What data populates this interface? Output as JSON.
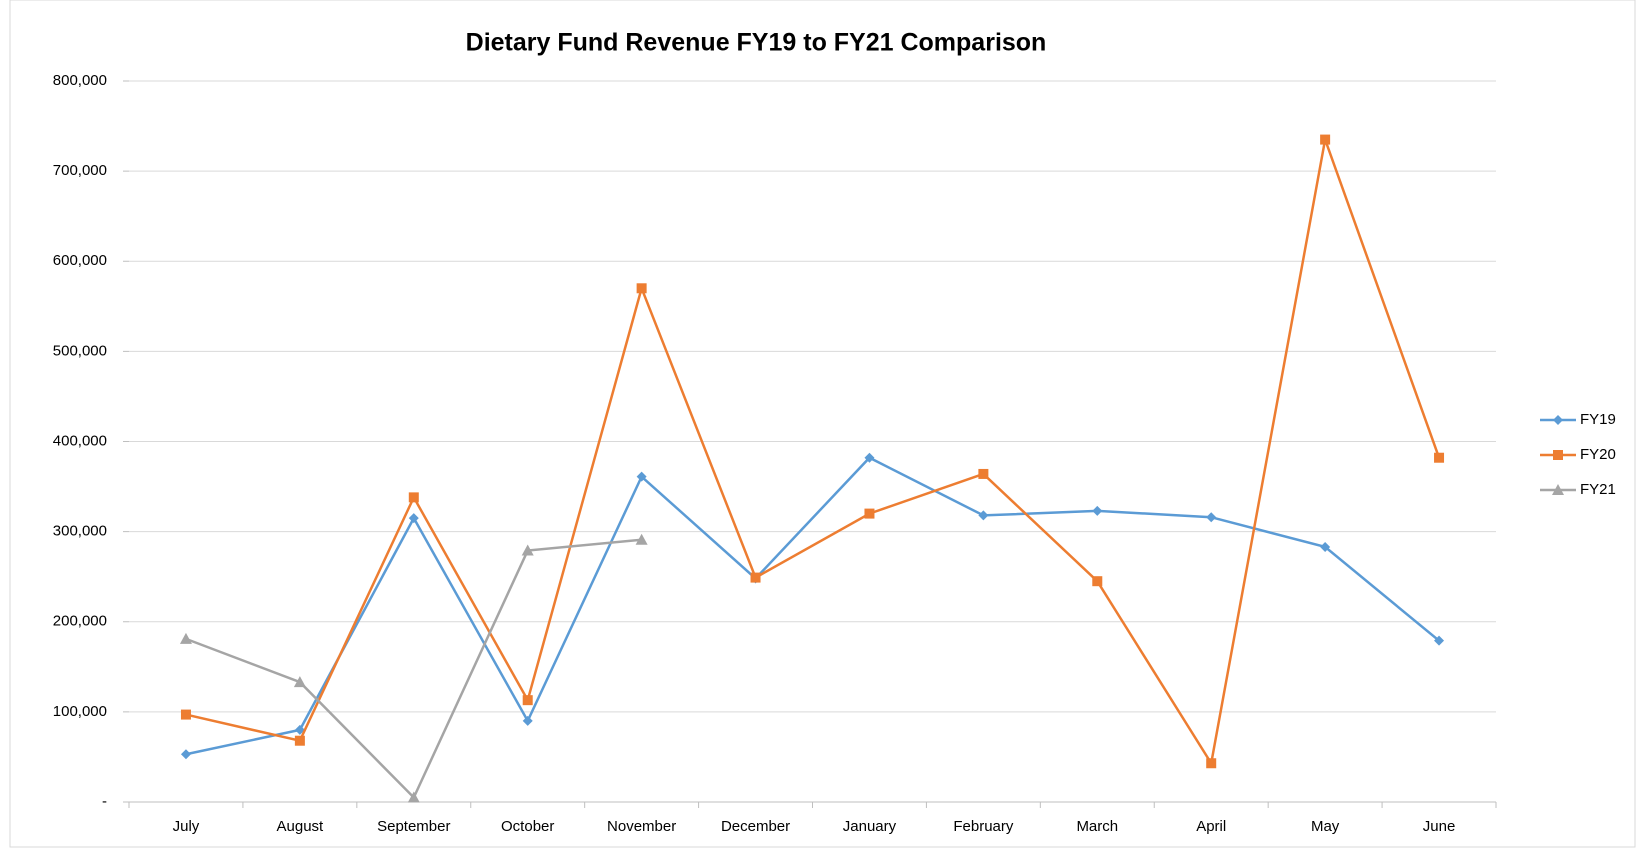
{
  "chart_data": {
    "type": "line",
    "title": "Dietary Fund Revenue FY19 to FY21 Comparison",
    "categories": [
      "July",
      "August",
      "September",
      "October",
      "November",
      "December",
      "January",
      "February",
      "March",
      "April",
      "May",
      "June"
    ],
    "series": [
      {
        "name": "FY19",
        "color": "#5b9bd5",
        "marker": "diamond",
        "values": [
          53000,
          80000,
          315000,
          90000,
          361000,
          248000,
          382000,
          318000,
          323000,
          316000,
          283000,
          179000
        ]
      },
      {
        "name": "FY20",
        "color": "#ed7d31",
        "marker": "square",
        "values": [
          97000,
          68000,
          338000,
          113000,
          570000,
          249000,
          320000,
          364000,
          245000,
          43000,
          735000,
          382000
        ]
      },
      {
        "name": "FY21",
        "color": "#a5a5a5",
        "marker": "triangle",
        "values": [
          181000,
          133000,
          5000,
          279000,
          291000,
          null,
          null,
          null,
          null,
          null,
          null,
          null
        ]
      }
    ],
    "ylim": [
      0,
      800000
    ],
    "yticks": [
      {
        "value": 0,
        "label": "-"
      },
      {
        "value": 100000,
        "label": "100,000"
      },
      {
        "value": 200000,
        "label": "200,000"
      },
      {
        "value": 300000,
        "label": "300,000"
      },
      {
        "value": 400000,
        "label": "400,000"
      },
      {
        "value": 500000,
        "label": "500,000"
      },
      {
        "value": 600000,
        "label": "600,000"
      },
      {
        "value": 700000,
        "label": "700,000"
      },
      {
        "value": 800000,
        "label": "800,000"
      }
    ],
    "grid": true,
    "legend": "right"
  }
}
